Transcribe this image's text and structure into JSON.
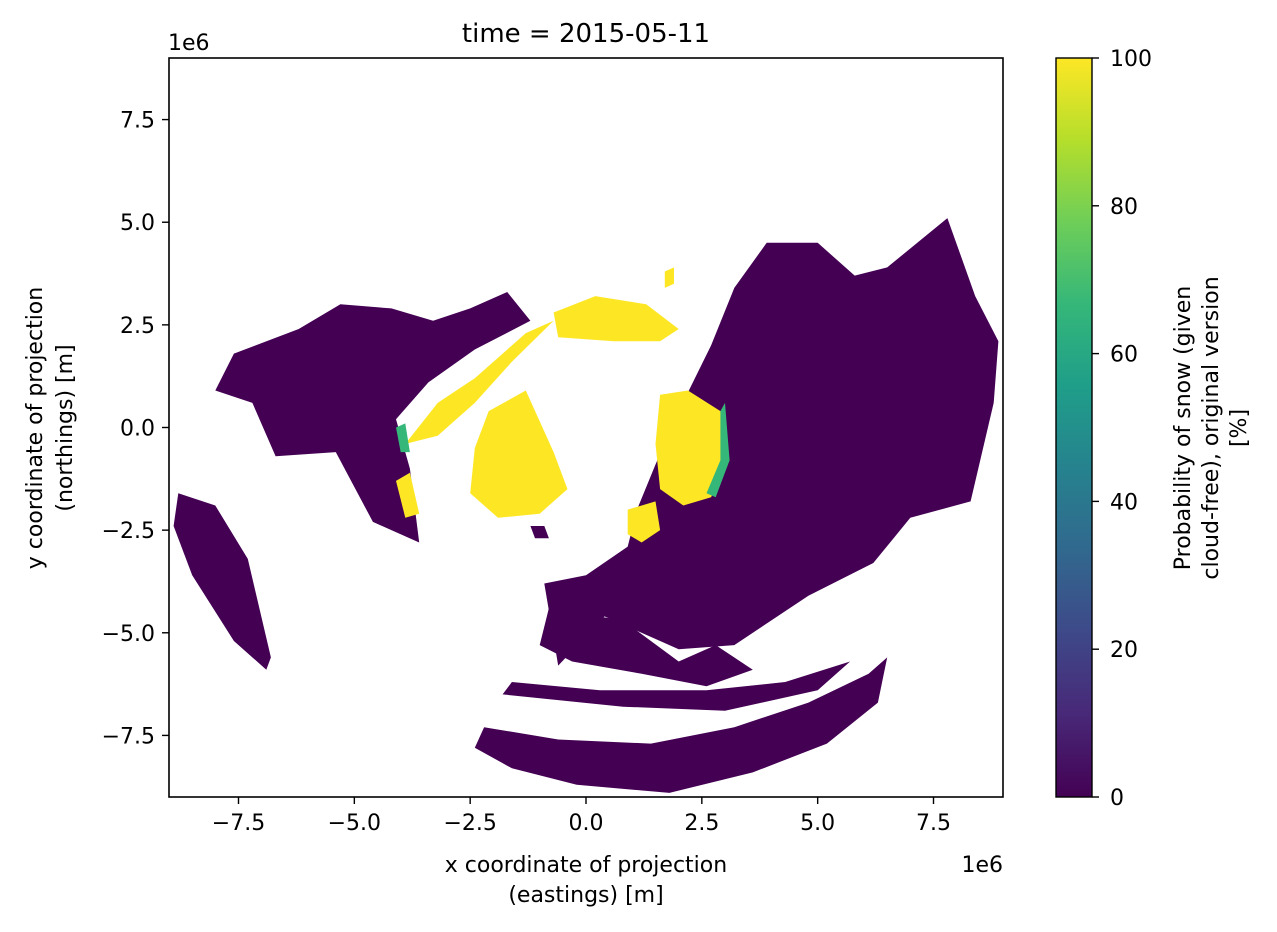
{
  "chart_data": {
    "type": "heatmap",
    "title": "time = 2015-05-11",
    "xlabel_line1": "x coordinate of projection",
    "xlabel_line2": "(eastings) [m]",
    "ylabel_line1": "y coordinate of projection",
    "ylabel_line2": "(northings) [m]",
    "x_offset_label": "1e6",
    "y_offset_label": "1e6",
    "xlim": [
      -9.0,
      9.0
    ],
    "ylim": [
      -9.0,
      9.0
    ],
    "xticks": [
      -7.5,
      -5.0,
      -2.5,
      0.0,
      2.5,
      5.0,
      7.5
    ],
    "yticks": [
      -7.5,
      -5.0,
      -2.5,
      0.0,
      2.5,
      5.0,
      7.5
    ],
    "xtick_labels": [
      "−7.5",
      "−5.0",
      "−2.5",
      "0.0",
      "2.5",
      "5.0",
      "7.5"
    ],
    "ytick_labels": [
      "−7.5",
      "−5.0",
      "−2.5",
      "0.0",
      "2.5",
      "5.0",
      "7.5"
    ],
    "colorbar": {
      "label_line1": "Probability of snow (given",
      "label_line2": "cloud-free), original version",
      "label_line3": "[%]",
      "range": [
        0,
        100
      ],
      "ticks": [
        0,
        20,
        40,
        60,
        80,
        100
      ],
      "tick_labels": [
        "0",
        "20",
        "40",
        "60",
        "80",
        "100"
      ],
      "colormap": "viridis",
      "stops": [
        "#440154",
        "#482878",
        "#3e4989",
        "#31688e",
        "#26828e",
        "#1f9e89",
        "#35b779",
        "#6ece58",
        "#b5de2b",
        "#fde725"
      ]
    },
    "colors": {
      "snow_free": "#440154",
      "snow": "#fde725",
      "transition": "#35b779",
      "no_data": "#ffffff"
    }
  }
}
